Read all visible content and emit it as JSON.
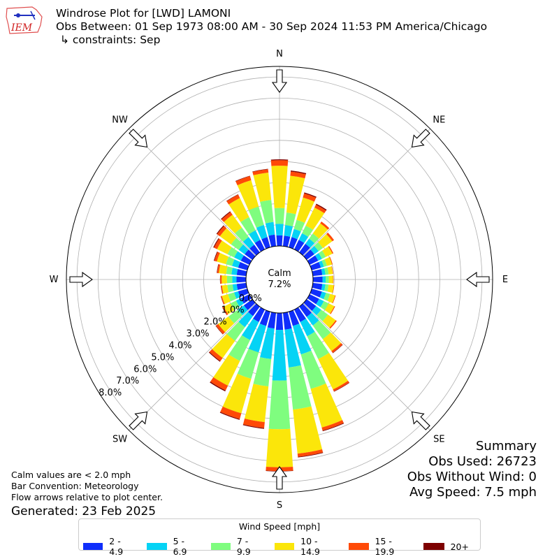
{
  "logo": {
    "text": "IEM"
  },
  "header": {
    "title": "Windrose Plot for [LWD] LAMONI",
    "subtitle": "Obs Between: 01 Sep 1973 08:00 AM - 30 Sep 2024 11:53 PM America/Chicago",
    "constraints": "↳ constraints: Sep"
  },
  "notes": {
    "calm_note": "Calm values are < 2.0 mph",
    "bar_convention": "Bar Convention: Meteorology",
    "flow_note": "Flow arrows relative to plot center.",
    "generated": "Generated: 23 Feb 2025"
  },
  "summary": {
    "heading": "Summary",
    "obs_used": "Obs Used: 26723",
    "obs_without_wind": "Obs Without Wind: 0",
    "avg_speed": "Avg Speed: 7.5 mph"
  },
  "chart_data": {
    "type": "windrose",
    "calm_label": "Calm",
    "calm_value": "7.2%",
    "calm_percent": 7.2,
    "directions": [
      "N",
      "NE",
      "E",
      "SE",
      "S",
      "SW",
      "W",
      "NW"
    ],
    "radial_ticks": [
      0,
      1,
      2,
      3,
      4,
      5,
      6,
      7,
      8
    ],
    "radial_tick_labels": [
      "0.0%",
      "1.0%",
      "2.0%",
      "3.0%",
      "4.0%",
      "5.0%",
      "6.0%",
      "7.0%",
      "8.0%"
    ],
    "legend_title": "Wind Speed [mph]",
    "bins": [
      {
        "label": "2 - 4.9",
        "color": "#0f2efb"
      },
      {
        "label": "5 - 6.9",
        "color": "#05d3f5"
      },
      {
        "label": "7 - 9.9",
        "color": "#7ffd7f"
      },
      {
        "label": "10 - 14.9",
        "color": "#fbe60a"
      },
      {
        "label": "15 - 19.9",
        "color": "#ff4a07"
      },
      {
        "label": "20+",
        "color": "#7d0000"
      }
    ],
    "sectors_deg": [
      0,
      10,
      20,
      30,
      40,
      50,
      60,
      70,
      80,
      90,
      100,
      110,
      120,
      130,
      140,
      150,
      160,
      170,
      180,
      190,
      200,
      210,
      220,
      230,
      240,
      250,
      260,
      270,
      280,
      290,
      300,
      310,
      320,
      330,
      340,
      350
    ],
    "cumulative_percent": [
      [
        0.5,
        1.05,
        1.8,
        3.8,
        4.06,
        4.1
      ],
      [
        0.5,
        1.0,
        1.6,
        3.35,
        3.55,
        3.6
      ],
      [
        0.5,
        0.9,
        1.35,
        2.45,
        2.65,
        2.7
      ],
      [
        0.5,
        0.85,
        1.25,
        2.2,
        2.35,
        2.4
      ],
      [
        0.5,
        0.8,
        1.1,
        1.7,
        1.8,
        1.8
      ],
      [
        0.45,
        0.7,
        0.95,
        1.5,
        1.6,
        1.6
      ],
      [
        0.45,
        0.65,
        0.85,
        1.2,
        1.25,
        1.25
      ],
      [
        0.45,
        0.6,
        0.75,
        1.0,
        1.03,
        1.03
      ],
      [
        0.45,
        0.6,
        0.75,
        0.95,
        0.97,
        0.97
      ],
      [
        0.45,
        0.6,
        0.75,
        0.95,
        0.97,
        0.97
      ],
      [
        0.45,
        0.6,
        0.75,
        1.0,
        1.02,
        1.02
      ],
      [
        0.5,
        0.7,
        0.9,
        1.15,
        1.18,
        1.18
      ],
      [
        0.5,
        0.75,
        1.0,
        1.3,
        1.34,
        1.34
      ],
      [
        0.55,
        0.85,
        1.25,
        1.7,
        1.76,
        1.76
      ],
      [
        0.6,
        1.1,
        1.9,
        2.6,
        2.7,
        2.72
      ],
      [
        0.65,
        1.4,
        2.6,
        4.2,
        4.3,
        4.32
      ],
      [
        0.7,
        2.1,
        3.8,
        5.7,
        5.85,
        5.88
      ],
      [
        0.8,
        2.6,
        4.6,
        6.7,
        6.85,
        6.88
      ],
      [
        0.8,
        3.2,
        5.5,
        7.3,
        7.48,
        7.5
      ],
      [
        0.75,
        2.2,
        3.5,
        5.2,
        5.48,
        5.52
      ],
      [
        0.7,
        2.0,
        3.3,
        5.0,
        5.28,
        5.32
      ],
      [
        0.65,
        1.6,
        2.7,
        4.0,
        4.25,
        4.3
      ],
      [
        0.55,
        1.2,
        2.0,
        3.0,
        3.18,
        3.22
      ],
      [
        0.5,
        0.85,
        1.4,
        2.0,
        2.13,
        2.15
      ],
      [
        0.45,
        0.7,
        1.0,
        1.35,
        1.42,
        1.43
      ],
      [
        0.45,
        0.65,
        0.95,
        1.25,
        1.3,
        1.31
      ],
      [
        0.45,
        0.65,
        0.9,
        1.15,
        1.2,
        1.21
      ],
      [
        0.45,
        0.65,
        0.9,
        1.15,
        1.22,
        1.23
      ],
      [
        0.45,
        0.7,
        0.95,
        1.3,
        1.38,
        1.4
      ],
      [
        0.45,
        0.75,
        1.05,
        1.5,
        1.62,
        1.65
      ],
      [
        0.45,
        0.8,
        1.15,
        1.7,
        1.86,
        1.9
      ],
      [
        0.45,
        0.8,
        1.25,
        1.9,
        2.06,
        2.1
      ],
      [
        0.45,
        0.9,
        1.45,
        2.2,
        2.36,
        2.4
      ],
      [
        0.5,
        1.0,
        1.7,
        2.7,
        2.88,
        2.9
      ],
      [
        0.5,
        1.1,
        2.0,
        3.3,
        3.5,
        3.52
      ],
      [
        0.55,
        1.15,
        2.2,
        3.5,
        3.66,
        3.68
      ]
    ]
  }
}
